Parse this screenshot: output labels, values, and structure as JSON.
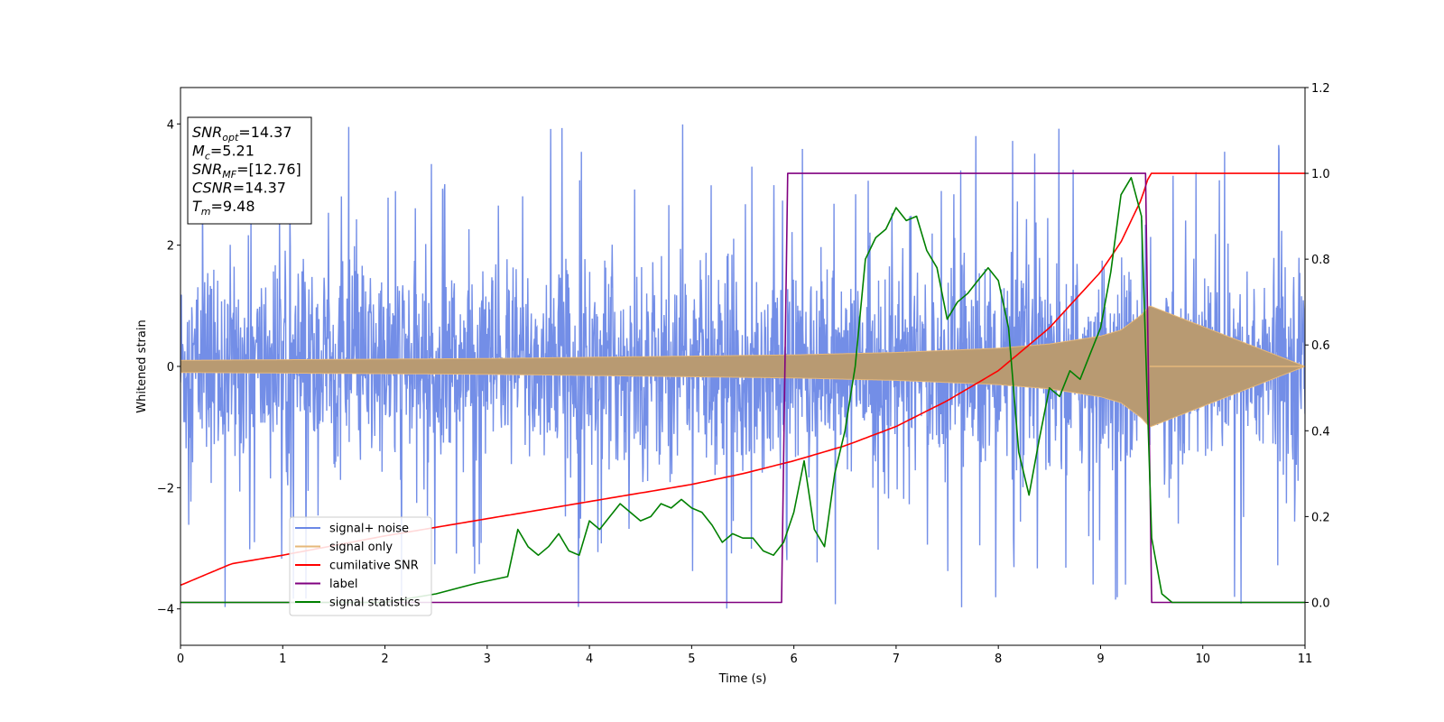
{
  "chart_data": {
    "type": "line",
    "xlabel": "Time (s)",
    "ylabel": "Whitened strain",
    "xlim": [
      0,
      11
    ],
    "ylim_left": [
      -4.6,
      4.6
    ],
    "ylim_right": [
      -0.1,
      1.2
    ],
    "x_ticks": [
      "0",
      "1",
      "2",
      "3",
      "4",
      "5",
      "6",
      "7",
      "8",
      "9",
      "10",
      "11"
    ],
    "y_ticks_left": [
      "−4",
      "−2",
      "0",
      "2",
      "4"
    ],
    "y_ticks_right": [
      "0.0",
      "0.2",
      "0.4",
      "0.6",
      "0.8",
      "1.0",
      "1.2"
    ],
    "legend_position": "lower-left",
    "annotation_lines": [
      {
        "main": "SNR",
        "sub": "opt",
        "rest": "=14.37"
      },
      {
        "main": "M",
        "sub": "c",
        "rest": "=5.21"
      },
      {
        "main": "SNR",
        "sub": "MF",
        "rest": "=[12.76]"
      },
      {
        "main": "CSNR",
        "sub": "",
        "rest": "=14.37"
      },
      {
        "main": "T",
        "sub": "m",
        "rest": "=9.48"
      }
    ],
    "series": [
      {
        "name": "signal+ noise",
        "color": "#6b88e6",
        "axis": "left",
        "style": "noise, amplitude ~±2.5 with spikes to ±4"
      },
      {
        "name": "signal only",
        "color": "#e6b87a",
        "axis": "left",
        "style": "chirp envelope",
        "envelope_t": [
          0,
          1,
          2,
          3,
          4,
          5,
          6,
          7,
          8,
          8.5,
          9,
          9.2,
          9.4,
          9.48,
          11
        ],
        "envelope_a": [
          0.1,
          0.11,
          0.12,
          0.13,
          0.15,
          0.17,
          0.19,
          0.23,
          0.3,
          0.37,
          0.5,
          0.6,
          0.85,
          1.0,
          0.0
        ]
      },
      {
        "name": "cumilative SNR",
        "color": "#ff0000",
        "axis": "right",
        "x": [
          0,
          0.5,
          1,
          2,
          3,
          4,
          5,
          5.5,
          6,
          6.5,
          7,
          7.5,
          8,
          8.5,
          9,
          9.2,
          9.4,
          9.48,
          11
        ],
        "y": [
          0.04,
          0.09,
          0.11,
          0.155,
          0.195,
          0.235,
          0.275,
          0.3,
          0.33,
          0.365,
          0.41,
          0.47,
          0.54,
          0.64,
          0.77,
          0.84,
          0.94,
          1.0,
          1.0
        ]
      },
      {
        "name": "label",
        "color": "#800080",
        "axis": "right",
        "x": [
          0,
          5.88,
          5.94,
          9.44,
          9.5,
          11
        ],
        "y": [
          0,
          0,
          1,
          1,
          0,
          0
        ]
      },
      {
        "name": "signal statistics",
        "color": "#008000",
        "axis": "right",
        "x": [
          0,
          2,
          2.5,
          2.9,
          3.2,
          3.3,
          3.4,
          3.5,
          3.6,
          3.7,
          3.8,
          3.9,
          4.0,
          4.1,
          4.2,
          4.3,
          4.4,
          4.5,
          4.6,
          4.7,
          4.8,
          4.9,
          5.0,
          5.1,
          5.2,
          5.3,
          5.4,
          5.5,
          5.6,
          5.7,
          5.8,
          5.9,
          6.0,
          6.1,
          6.2,
          6.3,
          6.4,
          6.5,
          6.6,
          6.7,
          6.8,
          6.9,
          7.0,
          7.1,
          7.2,
          7.3,
          7.4,
          7.5,
          7.6,
          7.7,
          7.8,
          7.9,
          8.0,
          8.1,
          8.2,
          8.3,
          8.4,
          8.5,
          8.6,
          8.7,
          8.8,
          8.9,
          9.0,
          9.1,
          9.2,
          9.3,
          9.4,
          9.5,
          9.6,
          9.7,
          10,
          11
        ],
        "y": [
          0.0,
          0.0,
          0.02,
          0.045,
          0.06,
          0.17,
          0.13,
          0.11,
          0.13,
          0.16,
          0.12,
          0.11,
          0.19,
          0.17,
          0.2,
          0.23,
          0.21,
          0.19,
          0.2,
          0.23,
          0.22,
          0.24,
          0.22,
          0.21,
          0.18,
          0.14,
          0.16,
          0.15,
          0.15,
          0.12,
          0.11,
          0.14,
          0.21,
          0.33,
          0.17,
          0.13,
          0.3,
          0.4,
          0.55,
          0.8,
          0.85,
          0.87,
          0.92,
          0.89,
          0.9,
          0.82,
          0.78,
          0.66,
          0.7,
          0.72,
          0.75,
          0.78,
          0.75,
          0.64,
          0.35,
          0.25,
          0.38,
          0.5,
          0.48,
          0.54,
          0.52,
          0.58,
          0.64,
          0.77,
          0.95,
          0.99,
          0.9,
          0.15,
          0.02,
          0.0,
          0.0,
          0.0
        ]
      }
    ]
  }
}
